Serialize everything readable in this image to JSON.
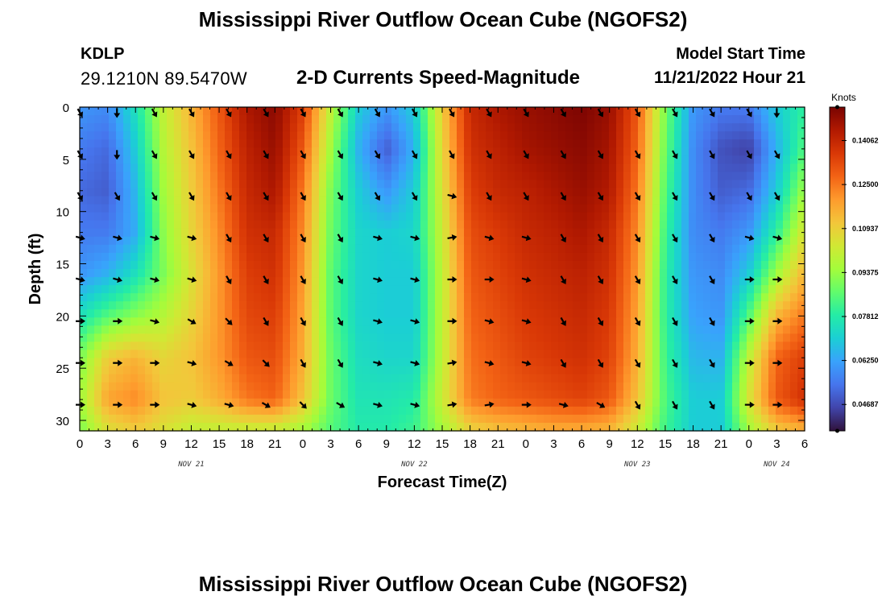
{
  "header": {
    "title": "Mississippi River Outflow Ocean Cube (NGOFS2)",
    "station_id": "KDLP",
    "station_coords": "29.1210N  89.5470W",
    "subtitle": "2-D Currents Speed-Magnitude",
    "model_start_label": "Model Start Time",
    "model_start_value": "11/21/2022 Hour 21"
  },
  "footer": {
    "title": "Mississippi River Outflow Ocean Cube (NGOFS2)"
  },
  "chart_data": {
    "type": "heatmap",
    "xlabel": "Forecast Time(Z)",
    "ylabel": "Depth (ft)",
    "x_tick_labels": [
      "0",
      "3",
      "6",
      "9",
      "12",
      "15",
      "18",
      "21",
      "0",
      "3",
      "6",
      "9",
      "12",
      "15",
      "18",
      "21",
      "0",
      "3",
      "6",
      "9",
      "12",
      "15",
      "18",
      "21",
      "0",
      "3",
      "6"
    ],
    "x_tick_hours": [
      0,
      3,
      6,
      9,
      12,
      15,
      18,
      21,
      24,
      27,
      30,
      33,
      36,
      39,
      42,
      45,
      48,
      51,
      54,
      57,
      60,
      63,
      66,
      69,
      72,
      75,
      78
    ],
    "x_range": [
      0,
      78
    ],
    "date_labels": [
      {
        "text": "NOV 21",
        "hour": 12
      },
      {
        "text": "NOV 22",
        "hour": 36
      },
      {
        "text": "NOV 23",
        "hour": 60
      },
      {
        "text": "NOV 24",
        "hour": 75
      }
    ],
    "y_tick_labels": [
      "0",
      "5",
      "10",
      "15",
      "20",
      "25",
      "30"
    ],
    "y_ticks": [
      0,
      5,
      10,
      15,
      20,
      25,
      30
    ],
    "y_range": [
      0,
      31
    ],
    "y_inverted": true,
    "colorbar": {
      "unit": "Knots",
      "tick_labels": [
        "0.14062",
        "0.12500",
        "0.10937",
        "0.09375",
        "0.07812",
        "0.06250",
        "0.04687"
      ],
      "tick_values": [
        0.14062,
        0.125,
        0.10937,
        0.09375,
        0.07812,
        0.0625,
        0.04687
      ],
      "range": [
        0.0375,
        0.1525
      ],
      "colors": [
        "#30123b",
        "#4145ab",
        "#4675ed",
        "#39a2fc",
        "#1bcfd4",
        "#24eca6",
        "#61fc6c",
        "#a4fc3b",
        "#d1e834",
        "#f3c63a",
        "#fe9b2d",
        "#f36315",
        "#d93806",
        "#b11901",
        "#7a0402"
      ]
    },
    "speed_grid": {
      "x_hours": [
        0,
        3,
        6,
        9,
        12,
        15,
        18,
        21,
        24,
        27,
        30,
        33,
        36,
        39,
        42,
        45,
        48,
        51,
        54,
        57,
        60,
        63,
        66,
        69,
        72,
        75,
        78
      ],
      "depths": [
        0,
        4,
        8,
        12,
        16,
        20,
        24,
        28,
        31
      ],
      "values": [
        [
          0.06,
          0.058,
          0.075,
          0.1,
          0.115,
          0.13,
          0.145,
          0.15,
          0.135,
          0.1,
          0.07,
          0.06,
          0.07,
          0.11,
          0.14,
          0.145,
          0.148,
          0.15,
          0.152,
          0.148,
          0.13,
          0.09,
          0.06,
          0.055,
          0.055,
          0.07,
          0.08
        ],
        [
          0.055,
          0.052,
          0.07,
          0.098,
          0.112,
          0.128,
          0.142,
          0.148,
          0.13,
          0.095,
          0.065,
          0.05,
          0.065,
          0.108,
          0.138,
          0.142,
          0.146,
          0.148,
          0.15,
          0.146,
          0.128,
          0.088,
          0.058,
          0.048,
          0.045,
          0.065,
          0.085
        ],
        [
          0.052,
          0.05,
          0.066,
          0.095,
          0.11,
          0.125,
          0.14,
          0.145,
          0.125,
          0.09,
          0.07,
          0.06,
          0.07,
          0.105,
          0.135,
          0.14,
          0.142,
          0.145,
          0.148,
          0.144,
          0.125,
          0.085,
          0.058,
          0.05,
          0.052,
          0.07,
          0.095
        ],
        [
          0.055,
          0.055,
          0.064,
          0.092,
          0.108,
          0.122,
          0.138,
          0.14,
          0.122,
          0.088,
          0.072,
          0.07,
          0.072,
          0.102,
          0.132,
          0.136,
          0.14,
          0.142,
          0.145,
          0.14,
          0.122,
          0.082,
          0.058,
          0.055,
          0.06,
          0.08,
          0.105
        ],
        [
          0.06,
          0.065,
          0.075,
          0.09,
          0.105,
          0.12,
          0.135,
          0.138,
          0.12,
          0.086,
          0.072,
          0.07,
          0.07,
          0.1,
          0.13,
          0.134,
          0.138,
          0.14,
          0.142,
          0.138,
          0.12,
          0.08,
          0.06,
          0.058,
          0.07,
          0.095,
          0.115
        ],
        [
          0.075,
          0.085,
          0.092,
          0.098,
          0.108,
          0.12,
          0.133,
          0.135,
          0.118,
          0.086,
          0.072,
          0.07,
          0.07,
          0.1,
          0.128,
          0.132,
          0.136,
          0.138,
          0.14,
          0.136,
          0.118,
          0.08,
          0.062,
          0.06,
          0.085,
          0.115,
          0.125
        ],
        [
          0.09,
          0.11,
          0.115,
          0.108,
          0.112,
          0.12,
          0.13,
          0.132,
          0.116,
          0.088,
          0.074,
          0.072,
          0.072,
          0.1,
          0.126,
          0.13,
          0.134,
          0.136,
          0.138,
          0.134,
          0.116,
          0.082,
          0.066,
          0.065,
          0.1,
          0.128,
          0.135
        ],
        [
          0.095,
          0.118,
          0.122,
          0.112,
          0.11,
          0.116,
          0.125,
          0.128,
          0.112,
          0.088,
          0.076,
          0.076,
          0.078,
          0.102,
          0.124,
          0.128,
          0.13,
          0.132,
          0.134,
          0.13,
          0.112,
          0.084,
          0.07,
          0.07,
          0.105,
          0.13,
          0.138
        ],
        [
          0.09,
          0.105,
          0.11,
          0.105,
          0.1,
          0.1,
          0.1,
          0.1,
          0.095,
          0.085,
          0.078,
          0.078,
          0.082,
          0.095,
          0.108,
          0.112,
          0.114,
          0.116,
          0.116,
          0.114,
          0.102,
          0.082,
          0.07,
          0.07,
          0.095,
          0.11,
          0.115
        ]
      ]
    },
    "arrows": {
      "x_hours": [
        0,
        4,
        8,
        12,
        16,
        20,
        24,
        28,
        32,
        36,
        40,
        44,
        48,
        52,
        56,
        60,
        64,
        68,
        72,
        75
      ],
      "depths": [
        0.5,
        4.5,
        8.5,
        12.5,
        16.5,
        20.5,
        24.5,
        28.5
      ],
      "directions_deg": [
        [
          150,
          180,
          150,
          150,
          150,
          150,
          150,
          150,
          150,
          150,
          150,
          150,
          150,
          150,
          150,
          150,
          150,
          150,
          150,
          180
        ],
        [
          150,
          180,
          150,
          150,
          150,
          150,
          150,
          150,
          150,
          150,
          150,
          150,
          150,
          150,
          150,
          150,
          150,
          150,
          150,
          150
        ],
        [
          150,
          150,
          150,
          150,
          150,
          150,
          150,
          150,
          150,
          150,
          105,
          150,
          150,
          150,
          150,
          150,
          150,
          150,
          150,
          150
        ],
        [
          105,
          105,
          105,
          105,
          150,
          150,
          150,
          150,
          105,
          105,
          80,
          105,
          105,
          150,
          150,
          150,
          150,
          150,
          105,
          105
        ],
        [
          105,
          105,
          105,
          105,
          150,
          150,
          150,
          150,
          105,
          105,
          90,
          90,
          105,
          150,
          150,
          150,
          150,
          150,
          90,
          90
        ],
        [
          90,
          90,
          105,
          120,
          135,
          150,
          150,
          150,
          105,
          105,
          90,
          105,
          105,
          150,
          150,
          150,
          150,
          150,
          90,
          90
        ],
        [
          90,
          90,
          90,
          105,
          120,
          135,
          150,
          150,
          105,
          105,
          80,
          105,
          105,
          150,
          150,
          150,
          150,
          150,
          90,
          90
        ],
        [
          90,
          90,
          90,
          105,
          105,
          120,
          135,
          120,
          105,
          105,
          80,
          80,
          90,
          105,
          120,
          150,
          150,
          150,
          90,
          90
        ]
      ]
    }
  }
}
